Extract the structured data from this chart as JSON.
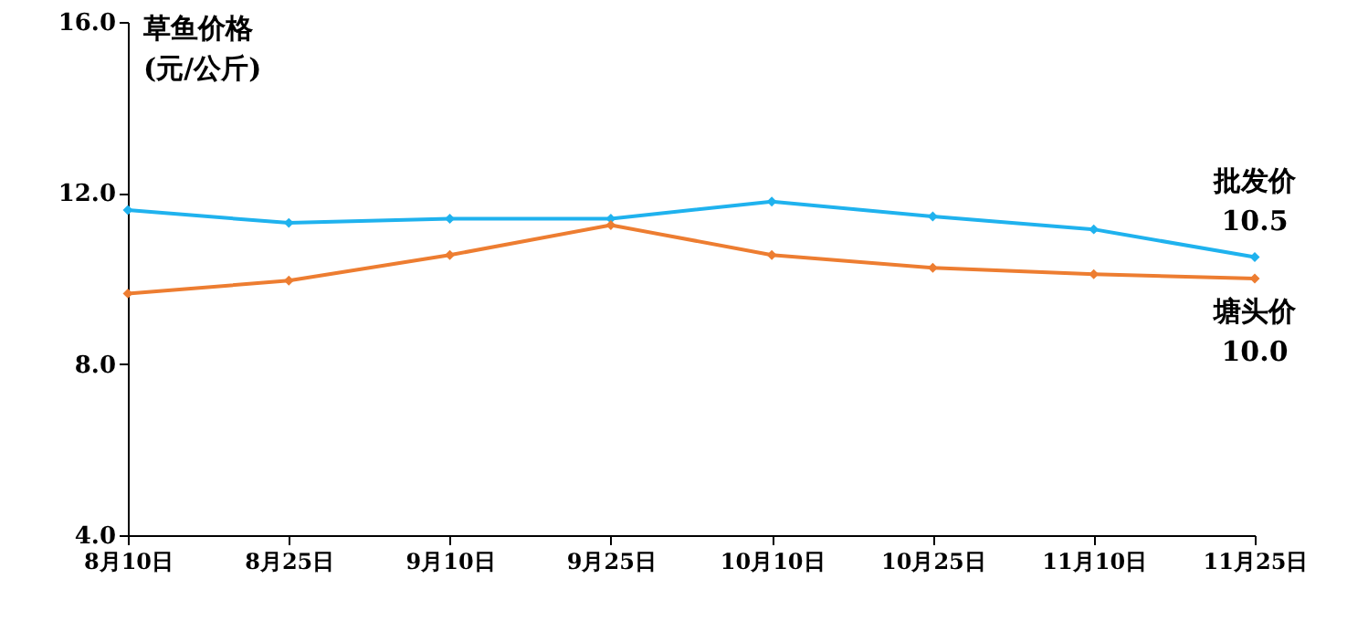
{
  "chart_data": {
    "type": "line",
    "ylabel": "草鱼价格\n(元/公斤)",
    "categories": [
      "8月10日",
      "8月25日",
      "9月10日",
      "9月25日",
      "10月10日",
      "10月25日",
      "11月10日",
      "11月25日"
    ],
    "series": [
      {
        "name": "批发价",
        "color": "#1fb2ee",
        "values": [
          11.6,
          11.3,
          11.4,
          11.4,
          11.8,
          11.45,
          11.15,
          10.5
        ],
        "value_labels": [
          null,
          null,
          null,
          null,
          null,
          null,
          null,
          "10.5"
        ]
      },
      {
        "name": "塘头价",
        "color": "#ed7d31",
        "values": [
          9.65,
          9.95,
          10.55,
          11.25,
          10.55,
          10.25,
          10.1,
          10.0
        ],
        "value_labels": [
          null,
          null,
          null,
          null,
          null,
          null,
          null,
          "10.0"
        ]
      }
    ],
    "ylim": [
      4,
      16
    ],
    "yticks": [
      {
        "value": 4,
        "label": "4.0"
      },
      {
        "value": 8,
        "label": "8.0"
      },
      {
        "value": 12,
        "label": "12.0"
      },
      {
        "value": 16,
        "label": "16.0"
      }
    ],
    "grid": false,
    "legend": "right",
    "marker": "diamond",
    "line_style": "solid"
  }
}
